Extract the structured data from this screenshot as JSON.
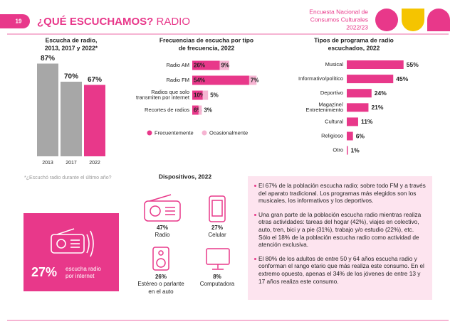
{
  "header": {
    "page_number": "19",
    "title": "¿QUÉ ESCUCHAMOS?",
    "section": "RADIO",
    "survey": [
      "Encuesta Nacional de",
      "Consumos Culturales",
      "2022/23"
    ]
  },
  "chart_data": [
    {
      "type": "bar",
      "title": [
        "Escucha de radio,",
        "2013, 2017 y 2022*"
      ],
      "categories": [
        "2013",
        "2017",
        "2022"
      ],
      "values": [
        87,
        70,
        67
      ],
      "value_labels": [
        "87%",
        "70%",
        "67%"
      ],
      "colors": [
        "#a7a7a7",
        "#a7a7a7",
        "#e8388a"
      ],
      "footnote": "*¿Escuchó radio durante el último año?"
    },
    {
      "type": "stacked-bar-h",
      "title": [
        "Frecuencias de escucha por tipo",
        "de frecuencia, 2022"
      ],
      "categories": [
        "Radio AM",
        "Radio FM",
        [
          "Radios que solo",
          "transmiten por internet"
        ],
        "Recortes de radios"
      ],
      "series": [
        {
          "name": "Frecuentemente",
          "color": "#e8388a",
          "values": [
            26,
            54,
            10,
            6
          ],
          "value_labels": [
            "26%",
            "54%",
            "10%",
            "6%"
          ]
        },
        {
          "name": "Ocasionalmente",
          "color": "#f6b4d2",
          "values": [
            9,
            7,
            5,
            3
          ],
          "value_labels": [
            "9%",
            "7%",
            "5%",
            "3%"
          ]
        }
      ]
    },
    {
      "type": "bar-h",
      "title": [
        "Tipos de programa de radio",
        "escuchados, 2022"
      ],
      "categories": [
        "Musical",
        "Informativo/político",
        "Deportivo",
        [
          "Magazine/",
          "Entretenimiento"
        ],
        "Cultural",
        "Religioso",
        "Otro"
      ],
      "values": [
        55,
        45,
        24,
        21,
        11,
        6,
        1
      ],
      "value_labels": [
        "55%",
        "45%",
        "24%",
        "21%",
        "11%",
        "6%",
        "1%"
      ],
      "color": "#e8388a"
    }
  ],
  "devices": {
    "title": "Dispositivos, 2022",
    "items": [
      {
        "value": "47%",
        "label": [
          "Radio"
        ]
      },
      {
        "value": "27%",
        "label": [
          "Celular"
        ]
      },
      {
        "value": "26%",
        "label": [
          "Estéreo o parlante",
          "en el auto"
        ]
      },
      {
        "value": "8%",
        "label": [
          "Computadora"
        ]
      }
    ]
  },
  "highlight": {
    "value": "27%",
    "label": [
      "escucha radio",
      "por internet"
    ]
  },
  "notes": [
    "El 67% de la población escucha radio; sobre todo FM y a través del aparato tradicional. Los programas más elegidos son los musicales, los informativos y los deportivos.",
    "Una gran parte de la población escucha radio mientras realiza otras actividades: tareas del hogar (42%), viajes en colectivo, auto, tren, bici y a pie (31%), trabajo y/o estudio (22%), etc. Sólo el 18% de la población escucha radio como actividad de atención exclusiva.",
    "El 80% de los adultos de entre 50 y 64 años escucha radio y conforman el rango etario que más realiza este consumo. En el extremo opuesto, apenas el 34% de los jóvenes de entre 13 y 17 años realiza este consumo."
  ]
}
